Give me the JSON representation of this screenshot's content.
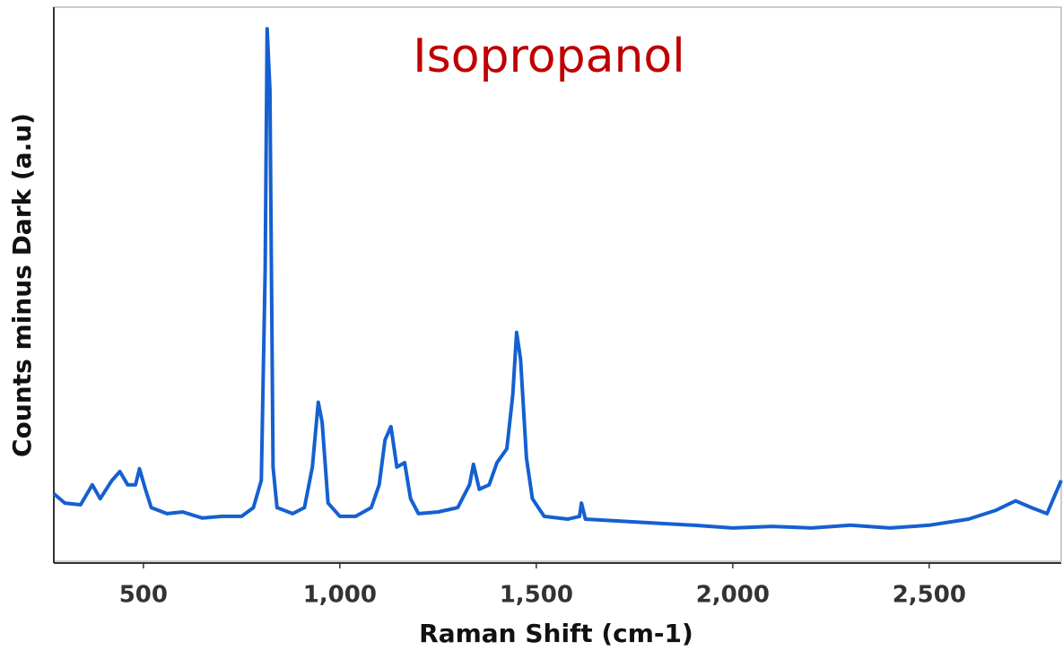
{
  "chart_data": {
    "type": "line",
    "title": "Isopropanol",
    "title_color": "#c00000",
    "xlabel": "Raman Shift (cm-1)",
    "ylabel": "Counts minus Dark (a.u)",
    "x": [
      272,
      300,
      340,
      370,
      390,
      420,
      440,
      460,
      480,
      490,
      505,
      520,
      560,
      600,
      650,
      700,
      750,
      780,
      800,
      810,
      815,
      822,
      830,
      840,
      880,
      910,
      930,
      945,
      955,
      970,
      1000,
      1040,
      1080,
      1100,
      1115,
      1130,
      1145,
      1165,
      1180,
      1200,
      1250,
      1300,
      1330,
      1340,
      1355,
      1380,
      1400,
      1425,
      1440,
      1450,
      1460,
      1475,
      1490,
      1520,
      1580,
      1610,
      1615,
      1625,
      1700,
      1800,
      1900,
      2000,
      2100,
      2200,
      2300,
      2400,
      2500,
      2600,
      2670,
      2720,
      2760,
      2800,
      2836
    ],
    "series": [
      {
        "name": "Isopropanol",
        "color": "#1560d0",
        "values": [
          12.2,
          10.5,
          10.2,
          13.8,
          11.3,
          14.6,
          16.2,
          13.8,
          13.8,
          16.7,
          13.0,
          9.7,
          8.6,
          8.9,
          7.8,
          8.1,
          8.1,
          9.7,
          14.6,
          52.7,
          96.1,
          85.1,
          17.0,
          9.7,
          8.6,
          9.7,
          17.0,
          28.7,
          25.1,
          10.5,
          8.1,
          8.1,
          9.7,
          13.8,
          21.9,
          24.3,
          17.0,
          17.8,
          11.3,
          8.6,
          8.9,
          9.7,
          13.8,
          17.5,
          13.0,
          13.8,
          17.8,
          20.3,
          30.0,
          41.3,
          36.5,
          18.6,
          11.3,
          8.1,
          7.6,
          8.1,
          10.5,
          7.6,
          7.3,
          6.9,
          6.5,
          6.0,
          6.3,
          6.0,
          6.5,
          6.0,
          6.5,
          7.6,
          9.2,
          10.9,
          9.7,
          8.6,
          14.6
        ]
      }
    ],
    "xlim": [
      272,
      2836
    ],
    "ylim": [
      0,
      100
    ],
    "xticks": [
      500,
      {
        "value": 1000,
        "label": "1,000"
      },
      {
        "value": 1500,
        "label": "1,500"
      },
      {
        "value": 2000,
        "label": "2,000"
      },
      {
        "value": 2500,
        "label": "2,500"
      }
    ],
    "grid": false
  }
}
